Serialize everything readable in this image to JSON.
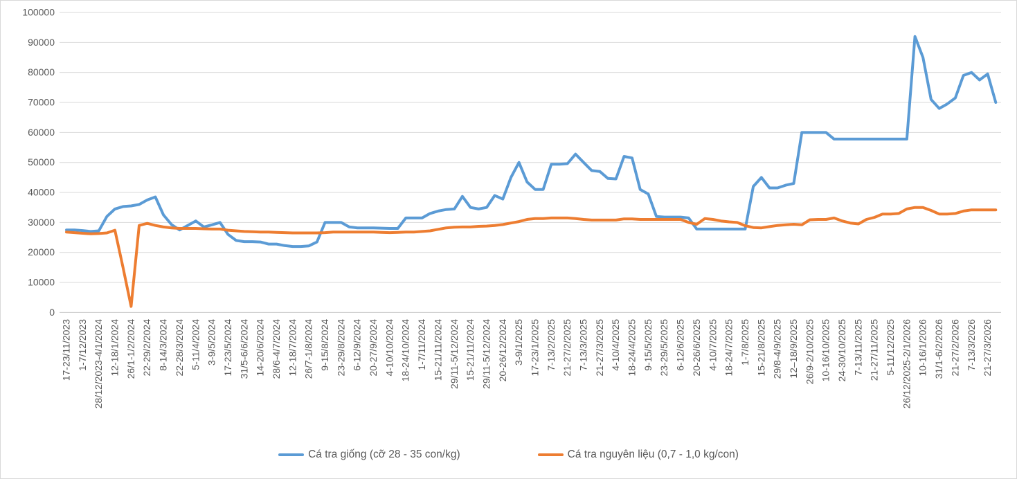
{
  "chart_data": {
    "type": "line",
    "title": "",
    "xlabel": "",
    "ylabel": "",
    "ylim": [
      0,
      100000
    ],
    "y_step": 10000,
    "grid": true,
    "legend_position": "bottom",
    "points_per_label": 2,
    "x_tick_labels": [
      "17-23/11/2023",
      "1-7/12/2023",
      "28/12/2023-4/1/2024",
      "12-18/1/2024",
      "26/1-1/2/2024",
      "22-29/2/2024",
      "8-14/3/2024",
      "22-28/3/2024",
      "5-11/4/2024",
      "3-9/5/2024",
      "17-23/5/2024",
      "31/5-6/6/2024",
      "14-20/6/2024",
      "28/6-4/7/2024",
      "12-18/7/2024",
      "26/7-1/8/2024",
      "9-15/8/2024",
      "23-29/8/2024",
      "6-12/9/2024",
      "20-27/9/2024",
      "4-10/10/2024",
      "18-24/10/2024",
      "1-7/11/2024",
      "15-21/11/2024",
      "29/11-5/12/2024",
      "15-21/11/2024",
      "29/11-5/12/2024",
      "20-26/12/2024",
      "3-9/1/2025",
      "17-23/1/2025",
      "7-13/2/2025",
      "21-27/2/2025",
      "7-13/3/2025",
      "21-27/3/2025",
      "4-10/4/2025",
      "18-24/4/2025",
      "9-15/5/2025",
      "23-29/5/2025",
      "6-12/6/2025",
      "20-26/6/2025",
      "4-10/7/2025",
      "18-24/7/2025",
      "1-7/8/2025",
      "15-21/8/2025",
      "29/8-4/9/2025",
      "12–18/9/2025",
      "26/9-2/10/2025",
      "10-16/10/2025",
      "24-30/10/2025",
      "7-13/11/2025",
      "21-27/11/2025",
      "5-11/12/2025",
      "26/12/2025-2/1/2026",
      "10-16/1/2026",
      "31/1-6/2/2026",
      "21-27/2/2026",
      "7-13/3/2026",
      "21-27/3/2026"
    ],
    "series": [
      {
        "name": "Cá tra giống (cỡ 28 - 35 con/kg)",
        "color": "#5B9BD5",
        "values": [
          27500,
          27500,
          27300,
          27000,
          27200,
          32000,
          34500,
          35300,
          35500,
          36000,
          37500,
          38500,
          32500,
          29300,
          27500,
          29000,
          30500,
          28500,
          29200,
          30000,
          26000,
          24000,
          23600,
          23600,
          23500,
          22800,
          22800,
          22300,
          22000,
          22000,
          22200,
          23500,
          30000,
          30000,
          30000,
          28500,
          28200,
          28200,
          28200,
          28100,
          28000,
          28000,
          31500,
          31500,
          31500,
          33000,
          33800,
          34300,
          34500,
          38700,
          35000,
          34500,
          35000,
          39000,
          37800,
          45000,
          50000,
          43500,
          41000,
          41000,
          49400,
          49400,
          49600,
          52800,
          50000,
          47300,
          47000,
          44700,
          44500,
          52000,
          51500,
          41000,
          39500,
          32000,
          31800,
          31800,
          31800,
          31500,
          27800,
          27800,
          27800,
          27800,
          27800,
          27800,
          27800,
          42000,
          45000,
          41500,
          41500,
          42400,
          43000,
          60000,
          60000,
          60000,
          60000,
          57800,
          57800,
          57800,
          57800,
          57800,
          57800,
          57800,
          57800,
          57800,
          57800,
          92000,
          85000,
          71000,
          68000,
          69500,
          71500,
          79000,
          80000,
          77500,
          79500,
          70000
        ]
      },
      {
        "name": "Cá tra nguyên liệu (0,7 - 1,0 kg/con)",
        "color": "#ED7D31",
        "values": [
          26800,
          26600,
          26400,
          26200,
          26300,
          26500,
          27400,
          15000,
          2000,
          29000,
          29700,
          29000,
          28500,
          28200,
          28000,
          28000,
          28000,
          27900,
          27800,
          27800,
          27400,
          27200,
          27000,
          26900,
          26800,
          26800,
          26700,
          26600,
          26500,
          26500,
          26500,
          26500,
          26600,
          26800,
          26800,
          26800,
          26800,
          26800,
          26800,
          26700,
          26600,
          26700,
          26800,
          26800,
          27000,
          27200,
          27700,
          28200,
          28400,
          28500,
          28500,
          28700,
          28800,
          29000,
          29300,
          29800,
          30300,
          31000,
          31300,
          31300,
          31500,
          31500,
          31500,
          31300,
          31000,
          30800,
          30800,
          30800,
          30800,
          31200,
          31200,
          31000,
          31000,
          31000,
          31000,
          31000,
          31000,
          30000,
          29400,
          31300,
          31000,
          30500,
          30200,
          30000,
          28900,
          28300,
          28200,
          28600,
          29000,
          29200,
          29400,
          29200,
          30900,
          31000,
          31000,
          31500,
          30500,
          29800,
          29500,
          31000,
          31700,
          32800,
          32800,
          33000,
          34500,
          35000,
          35000,
          34000,
          32800,
          32800,
          33000,
          33800,
          34200,
          34200,
          34200,
          34200
        ]
      }
    ],
    "colors": {
      "gridline": "#D9D9D9",
      "axis_line": "#C9C9C9",
      "axis_text": "#595959"
    }
  }
}
